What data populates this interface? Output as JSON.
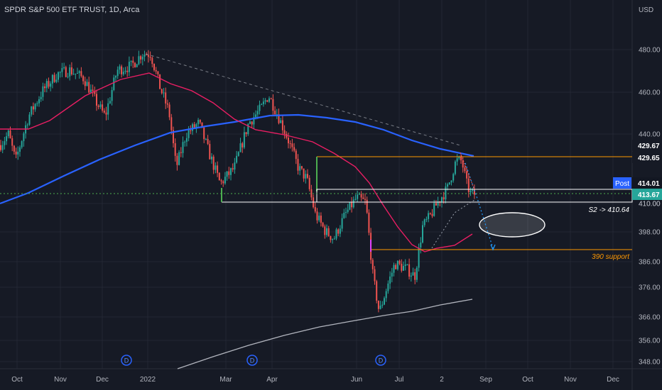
{
  "chart_data": {
    "type": "candlestick",
    "title": "SPDR S&P 500 ETF TRUST, 1D, Arca",
    "currency": "USD",
    "y_axis": {
      "scale": "log",
      "ticks": [
        348.0,
        356.0,
        366.0,
        376.0,
        386.0,
        398.0,
        410.0,
        440.0,
        460.0,
        480.0
      ]
    },
    "x_axis": {
      "labels": [
        "Oct",
        "Nov",
        "Dec",
        "2022",
        "Mar",
        "Apr",
        "Jun",
        "Jul",
        "2",
        "Sep",
        "Oct",
        "Nov",
        "Dec"
      ]
    },
    "price_labels": [
      {
        "value": "429.67",
        "color": "#ffffff",
        "bg": "#161a25"
      },
      {
        "value": "429.65",
        "color": "#ffffff",
        "bg": "#161a25"
      },
      {
        "value": "414.01",
        "color": "#ffffff",
        "bg": "#131722",
        "tag": "Post"
      },
      {
        "value": "413.67",
        "color": "#ffffff",
        "bg": "#26a69a"
      }
    ],
    "annotations": [
      {
        "text": "S2 -> 410.64"
      },
      {
        "text": "390 support"
      }
    ],
    "event_markers": [
      "D",
      "D",
      "D"
    ],
    "levels": [
      {
        "value": 429.65,
        "color": "#ff9800"
      },
      {
        "value": 413.67,
        "color": "#4caf50",
        "style": "dotted"
      },
      {
        "value": 410.64,
        "color": "#ffffff"
      },
      {
        "value": 390.0,
        "color": "#ff9800"
      }
    ],
    "colors": {
      "up": "#26a69a",
      "down": "#ef5350",
      "background": "#161a25",
      "ma_fast": "#e91e63",
      "ma_mid": "#2962ff",
      "ma_slow": "#b2b5be"
    }
  }
}
